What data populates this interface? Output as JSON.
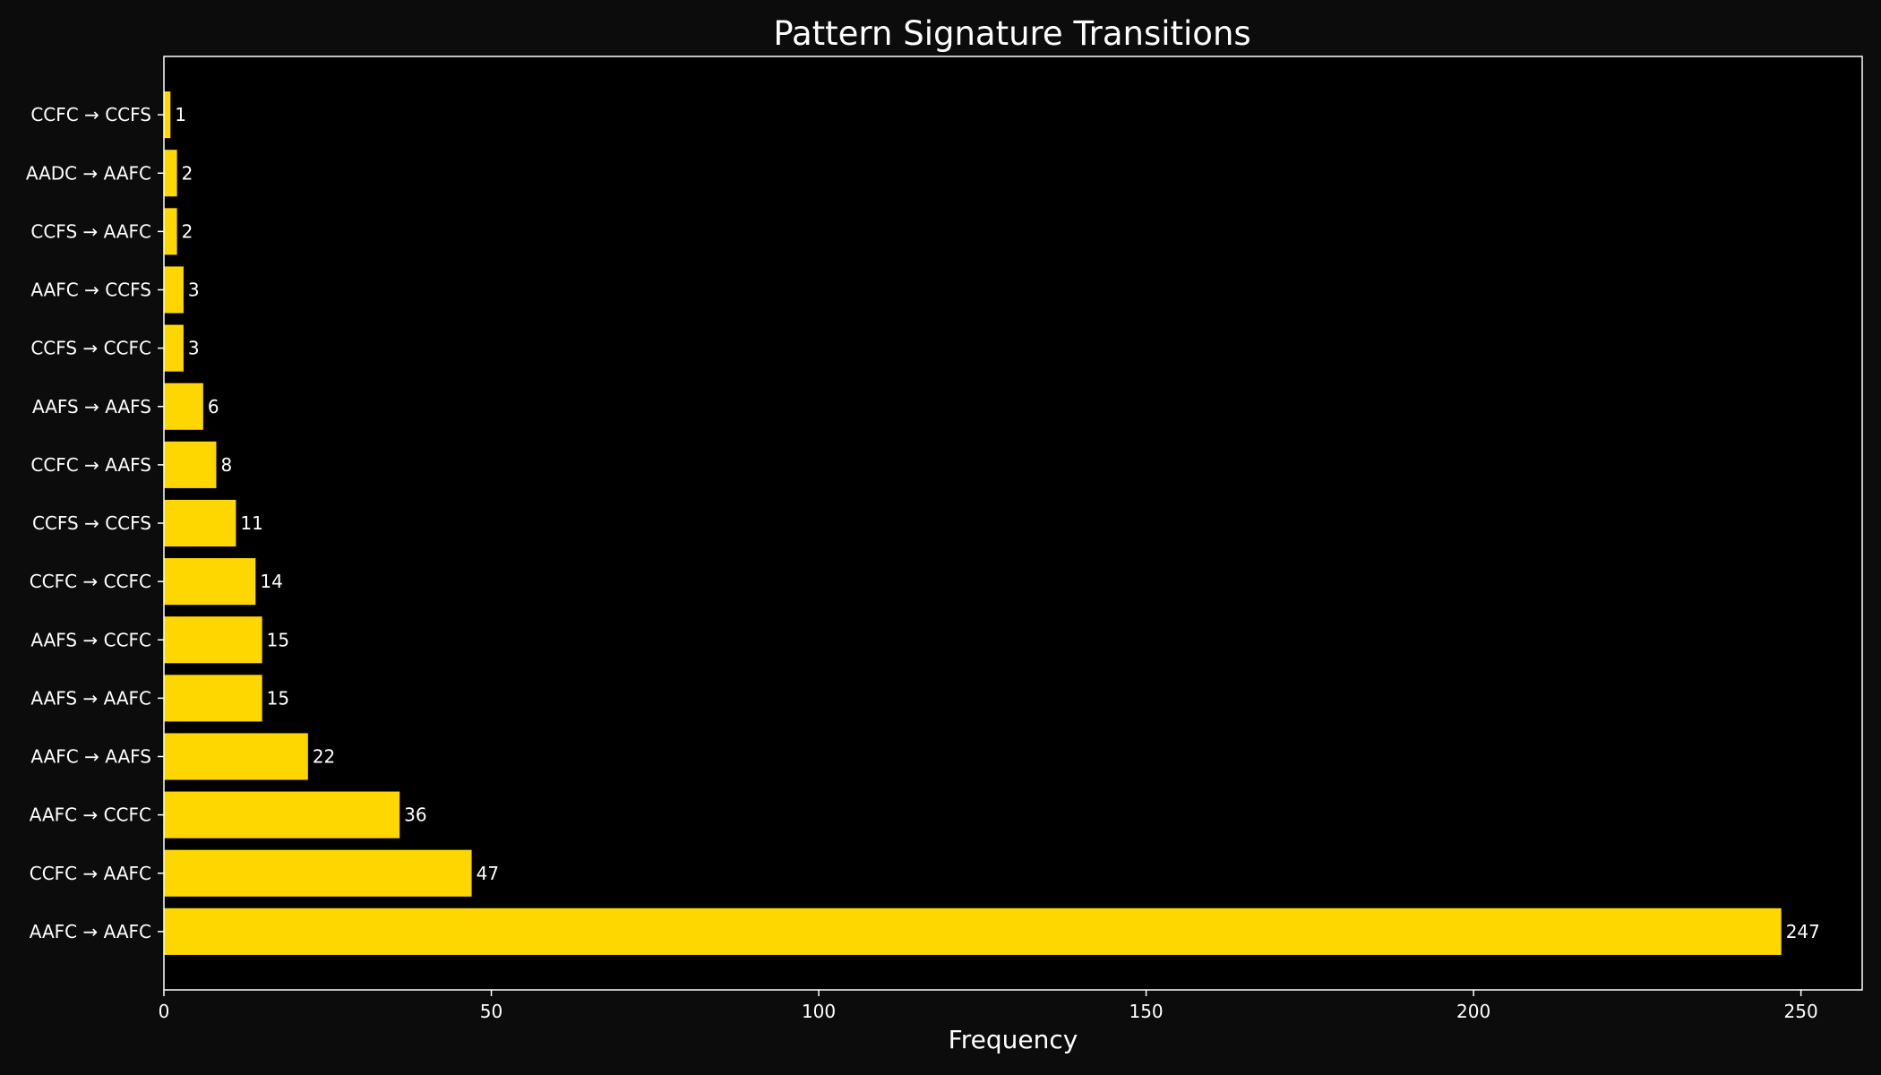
{
  "chart_data": {
    "type": "bar",
    "orientation": "horizontal",
    "title": "Pattern Signature Transitions",
    "xlabel": "Frequency",
    "ylabel": "",
    "xlim": [
      0,
      259.35
    ],
    "xticks": [
      0,
      50,
      100,
      150,
      200,
      250
    ],
    "grid": false,
    "legend": "none",
    "categories": [
      "AAFC → AAFC",
      "CCFC → AAFC",
      "AAFC → CCFC",
      "AAFC → AAFS",
      "AAFS → AAFC",
      "AAFS → CCFC",
      "CCFC → CCFC",
      "CCFS → CCFS",
      "CCFC → AAFS",
      "AAFS → AAFS",
      "CCFS → CCFC",
      "AAFC → CCFS",
      "CCFS → AAFC",
      "AADC → AAFC",
      "CCFC → CCFS"
    ],
    "values": [
      247,
      47,
      36,
      22,
      15,
      15,
      14,
      11,
      8,
      6,
      3,
      3,
      2,
      2,
      1
    ],
    "colors": {
      "bar": "#ffd700",
      "plot_background": "#000000",
      "figure_background": "#0c0c0c",
      "axes": "#ffffff",
      "text": "#ffffff"
    }
  }
}
